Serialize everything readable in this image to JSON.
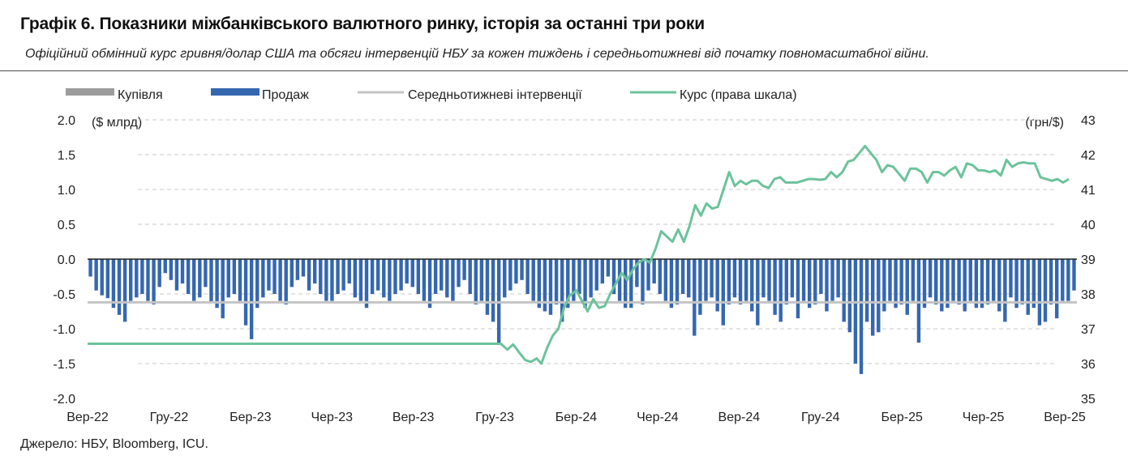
{
  "title": "Графік 6. Показники міжбанківського валютного ринку, історія за останні три роки",
  "subtitle": "Офіційний обмінний курс гривня/долар США та обсяги інтервенцій НБУ за кожен тиждень і середньотижневі від початку повномасштабної війни.",
  "source": "Джерело: НБУ, Bloomberg, ICU.",
  "chart_data": {
    "type": "bar",
    "left_unit": "($ млрд)",
    "right_unit": "(грн/$)",
    "left_ticks": [
      "2.0",
      "1.5",
      "1.0",
      "0.5",
      "0.0",
      "-0.5",
      "-1.0",
      "-1.5",
      "-2.0"
    ],
    "right_ticks": [
      "43",
      "42",
      "41",
      "40",
      "39",
      "38",
      "37",
      "36",
      "35"
    ],
    "ylim_left": [
      -2.0,
      2.0
    ],
    "ylim_right": [
      35,
      43
    ],
    "x_labels": [
      "Вер-22",
      "Гру-22",
      "Бер-23",
      "Чер-23",
      "Вер-23",
      "Гру-23",
      "Бер-24",
      "Чер-24",
      "Вер-24",
      "Гру-24",
      "Бер-25",
      "Чер-25",
      "Вер-25"
    ],
    "grid": true,
    "legend_position": "top",
    "colors": {
      "buy": "#9c9c9c",
      "sell": "#3567b0",
      "avg": "#c4c4c4",
      "rate": "#6cc39b",
      "zero": "#222222",
      "grid": "#c8c8c8"
    },
    "series": [
      {
        "name": "Купівля",
        "kind": "bar",
        "values": [
          0.0,
          0.0,
          0.0,
          0.0,
          0.0,
          0.0,
          0.0,
          0.0,
          0.0,
          0.0,
          0.0,
          0.0,
          0.0,
          0.0,
          0.0,
          0.0,
          0.0,
          0.0,
          0.0,
          0.0,
          0.0,
          0.0,
          0.0,
          0.0,
          0.0,
          0.0,
          0.0,
          0.0,
          0.0,
          0.0,
          0.0,
          0.0,
          0.0,
          0.0,
          0.0,
          0.0,
          0.0,
          0.0,
          0.0,
          0.0,
          0.0,
          0.0,
          0.0,
          0.0,
          0.0,
          0.0,
          0.0,
          0.0,
          0.0,
          0.0,
          0.0,
          0.0,
          0.0,
          0.0,
          0.0,
          0.0,
          0.0,
          0.0,
          0.0,
          0.0,
          0.0,
          0.0,
          0.0,
          0.0,
          0.0,
          0.0,
          0.0,
          0.0,
          0.0,
          0.0,
          0.0,
          0.0,
          0.0,
          0.0,
          0.0,
          0.0,
          0.0,
          0.0,
          0.0,
          0.0,
          0.0,
          0.0,
          0.0,
          0.0,
          0.0,
          0.0,
          0.0,
          0.0,
          0.0,
          0.0,
          0.0,
          0.0,
          0.0,
          0.0,
          0.0,
          0.0,
          0.0,
          0.0,
          0.0,
          0.0,
          0.0,
          0.0,
          0.0,
          0.0,
          0.0,
          0.0,
          0.0,
          0.0,
          0.0,
          0.0,
          0.0,
          0.0,
          0.0,
          0.0,
          0.0,
          0.0,
          0.0,
          0.0,
          0.0,
          0.0,
          0.0,
          0.0,
          0.0,
          0.0,
          0.0,
          0.0,
          0.0,
          0.0,
          0.0,
          0.0,
          0.0,
          0.0,
          0.0,
          0.0,
          0.0,
          0.0,
          0.0,
          0.0,
          0.0,
          0.0,
          0.0,
          0.0,
          0.0,
          0.0,
          0.0,
          0.0,
          0.0,
          0.0,
          0.0,
          0.0,
          0.0,
          0.0,
          0.0,
          0.0,
          0.0,
          0.0,
          0.0,
          0.0,
          0.0
        ]
      },
      {
        "name": "Продаж",
        "kind": "bar",
        "values": [
          -0.25,
          -0.45,
          -0.52,
          -0.56,
          -0.7,
          -0.8,
          -0.9,
          -0.6,
          -0.55,
          -0.5,
          -0.6,
          -0.65,
          -0.4,
          -0.2,
          -0.3,
          -0.45,
          -0.35,
          -0.5,
          -0.6,
          -0.55,
          -0.4,
          -0.62,
          -0.7,
          -0.85,
          -0.55,
          -0.5,
          -0.6,
          -0.95,
          -1.15,
          -0.7,
          -0.55,
          -0.45,
          -0.5,
          -0.6,
          -0.65,
          -0.4,
          -0.3,
          -0.25,
          -0.45,
          -0.35,
          -0.5,
          -0.6,
          -0.6,
          -0.5,
          -0.45,
          -0.35,
          -0.55,
          -0.6,
          -0.7,
          -0.5,
          -0.45,
          -0.55,
          -0.6,
          -0.5,
          -0.45,
          -0.35,
          -0.4,
          -0.5,
          -0.6,
          -0.7,
          -0.5,
          -0.45,
          -0.55,
          -0.6,
          -0.4,
          -0.3,
          -0.5,
          -0.65,
          -0.6,
          -0.8,
          -0.9,
          -1.2,
          -0.55,
          -0.45,
          -0.35,
          -0.3,
          -0.5,
          -0.6,
          -0.7,
          -0.75,
          -0.8,
          -0.65,
          -0.9,
          -0.7,
          -0.6,
          -0.5,
          -0.7,
          -0.55,
          -0.45,
          -0.35,
          -0.25,
          -0.5,
          -0.6,
          -0.7,
          -0.7,
          -0.4,
          -0.65,
          -0.45,
          -0.35,
          -0.5,
          -0.6,
          -0.7,
          -0.65,
          -0.5,
          -0.55,
          -1.1,
          -0.8,
          -0.6,
          -0.55,
          -0.75,
          -0.95,
          -0.65,
          -0.55,
          -0.65,
          -0.6,
          -0.75,
          -0.95,
          -0.55,
          -0.6,
          -0.8,
          -0.9,
          -0.65,
          -0.55,
          -0.85,
          -0.6,
          -0.7,
          -0.65,
          -0.5,
          -0.75,
          -0.6,
          -0.55,
          -0.9,
          -1.05,
          -1.5,
          -1.65,
          -0.9,
          -1.1,
          -1.05,
          -0.75,
          -0.6,
          -0.7,
          -0.65,
          -0.8,
          -0.6,
          -1.2,
          -0.7,
          -0.55,
          -0.65,
          -0.75,
          -0.7,
          -0.6,
          -0.65,
          -0.75,
          -0.6,
          -0.7,
          -0.7,
          -0.65,
          -0.6,
          -0.75,
          -0.9,
          -0.55,
          -0.7,
          -0.65,
          -0.8,
          -0.7,
          -0.95,
          -0.9,
          -0.65,
          -0.85,
          -0.6,
          -0.6,
          -0.45
        ]
      },
      {
        "name": "Середньотижневі інтервенції",
        "kind": "line",
        "value": -0.62
      },
      {
        "name": "Курс (права шкала)",
        "kind": "line",
        "axis": "right",
        "points": [
          [
            0,
            36.57
          ],
          [
            30,
            36.57
          ],
          [
            60,
            36.57
          ],
          [
            90,
            36.57
          ],
          [
            100,
            36.57
          ],
          [
            110,
            36.57
          ],
          [
            120,
            36.57
          ],
          [
            130,
            36.57
          ],
          [
            140,
            36.57
          ],
          [
            150,
            36.57
          ],
          [
            160,
            36.57
          ],
          [
            170,
            36.57
          ],
          [
            180,
            36.57
          ],
          [
            190,
            36.57
          ],
          [
            200,
            36.57
          ],
          [
            210,
            36.57
          ],
          [
            220,
            36.57
          ],
          [
            230,
            36.57
          ],
          [
            240,
            36.57
          ],
          [
            250,
            36.57
          ],
          [
            260,
            36.57
          ],
          [
            270,
            36.57
          ],
          [
            280,
            36.57
          ],
          [
            290,
            36.57
          ],
          [
            300,
            36.57
          ],
          [
            310,
            36.57
          ],
          [
            320,
            36.57
          ],
          [
            330,
            36.57
          ],
          [
            340,
            36.57
          ],
          [
            350,
            36.57
          ],
          [
            360,
            36.57
          ],
          [
            370,
            36.57
          ],
          [
            380,
            36.57
          ],
          [
            390,
            36.57
          ],
          [
            400,
            36.57
          ],
          [
            410,
            36.57
          ],
          [
            420,
            36.57
          ],
          [
            430,
            36.57
          ],
          [
            438,
            36.57
          ],
          [
            445,
            36.4
          ],
          [
            451,
            36.55
          ],
          [
            458,
            36.3
          ],
          [
            464,
            36.1
          ],
          [
            470,
            36.05
          ],
          [
            476,
            36.15
          ],
          [
            481,
            36.0
          ],
          [
            487,
            36.45
          ],
          [
            493,
            36.8
          ],
          [
            499,
            37.0
          ],
          [
            505,
            37.6
          ],
          [
            511,
            37.95
          ],
          [
            518,
            38.1
          ],
          [
            524,
            37.8
          ],
          [
            530,
            37.5
          ],
          [
            536,
            37.85
          ],
          [
            542,
            37.6
          ],
          [
            548,
            37.65
          ],
          [
            554,
            38.0
          ],
          [
            560,
            38.3
          ],
          [
            566,
            38.6
          ],
          [
            572,
            38.4
          ],
          [
            578,
            38.7
          ],
          [
            584,
            38.9
          ],
          [
            590,
            39.0
          ],
          [
            596,
            38.9
          ],
          [
            602,
            39.3
          ],
          [
            608,
            39.8
          ],
          [
            614,
            39.65
          ],
          [
            620,
            39.5
          ],
          [
            626,
            39.85
          ],
          [
            632,
            39.5
          ],
          [
            638,
            39.95
          ],
          [
            644,
            40.55
          ],
          [
            650,
            40.25
          ],
          [
            656,
            40.6
          ],
          [
            662,
            40.45
          ],
          [
            668,
            40.5
          ],
          [
            674,
            41.0
          ],
          [
            680,
            41.5
          ],
          [
            686,
            41.1
          ],
          [
            692,
            41.25
          ],
          [
            698,
            41.15
          ],
          [
            704,
            41.25
          ],
          [
            710,
            41.25
          ],
          [
            716,
            41.1
          ],
          [
            722,
            41.05
          ],
          [
            728,
            41.3
          ],
          [
            734,
            41.35
          ],
          [
            740,
            41.2
          ],
          [
            746,
            41.2
          ],
          [
            752,
            41.2
          ],
          [
            758,
            41.25
          ],
          [
            764,
            41.3
          ],
          [
            770,
            41.3
          ],
          [
            776,
            41.28
          ],
          [
            782,
            41.3
          ],
          [
            788,
            41.5
          ],
          [
            794,
            41.35
          ],
          [
            800,
            41.5
          ],
          [
            806,
            41.8
          ],
          [
            812,
            41.85
          ],
          [
            818,
            42.05
          ],
          [
            824,
            42.25
          ],
          [
            830,
            42.05
          ],
          [
            836,
            41.85
          ],
          [
            842,
            41.5
          ],
          [
            848,
            41.7
          ],
          [
            854,
            41.65
          ],
          [
            860,
            41.45
          ],
          [
            866,
            41.25
          ],
          [
            872,
            41.6
          ],
          [
            878,
            41.6
          ],
          [
            884,
            41.5
          ],
          [
            890,
            41.2
          ],
          [
            896,
            41.5
          ],
          [
            902,
            41.5
          ],
          [
            908,
            41.4
          ],
          [
            914,
            41.55
          ],
          [
            920,
            41.65
          ],
          [
            926,
            41.35
          ],
          [
            932,
            41.75
          ],
          [
            938,
            41.7
          ],
          [
            944,
            41.55
          ],
          [
            950,
            41.55
          ],
          [
            956,
            41.5
          ],
          [
            962,
            41.55
          ],
          [
            968,
            41.4
          ],
          [
            974,
            41.85
          ],
          [
            980,
            41.65
          ],
          [
            986,
            41.75
          ],
          [
            992,
            41.78
          ],
          [
            998,
            41.75
          ],
          [
            1004,
            41.75
          ],
          [
            1010,
            41.35
          ],
          [
            1016,
            41.3
          ],
          [
            1022,
            41.25
          ],
          [
            1028,
            41.3
          ],
          [
            1034,
            41.2
          ],
          [
            1040,
            41.3
          ]
        ]
      }
    ]
  }
}
